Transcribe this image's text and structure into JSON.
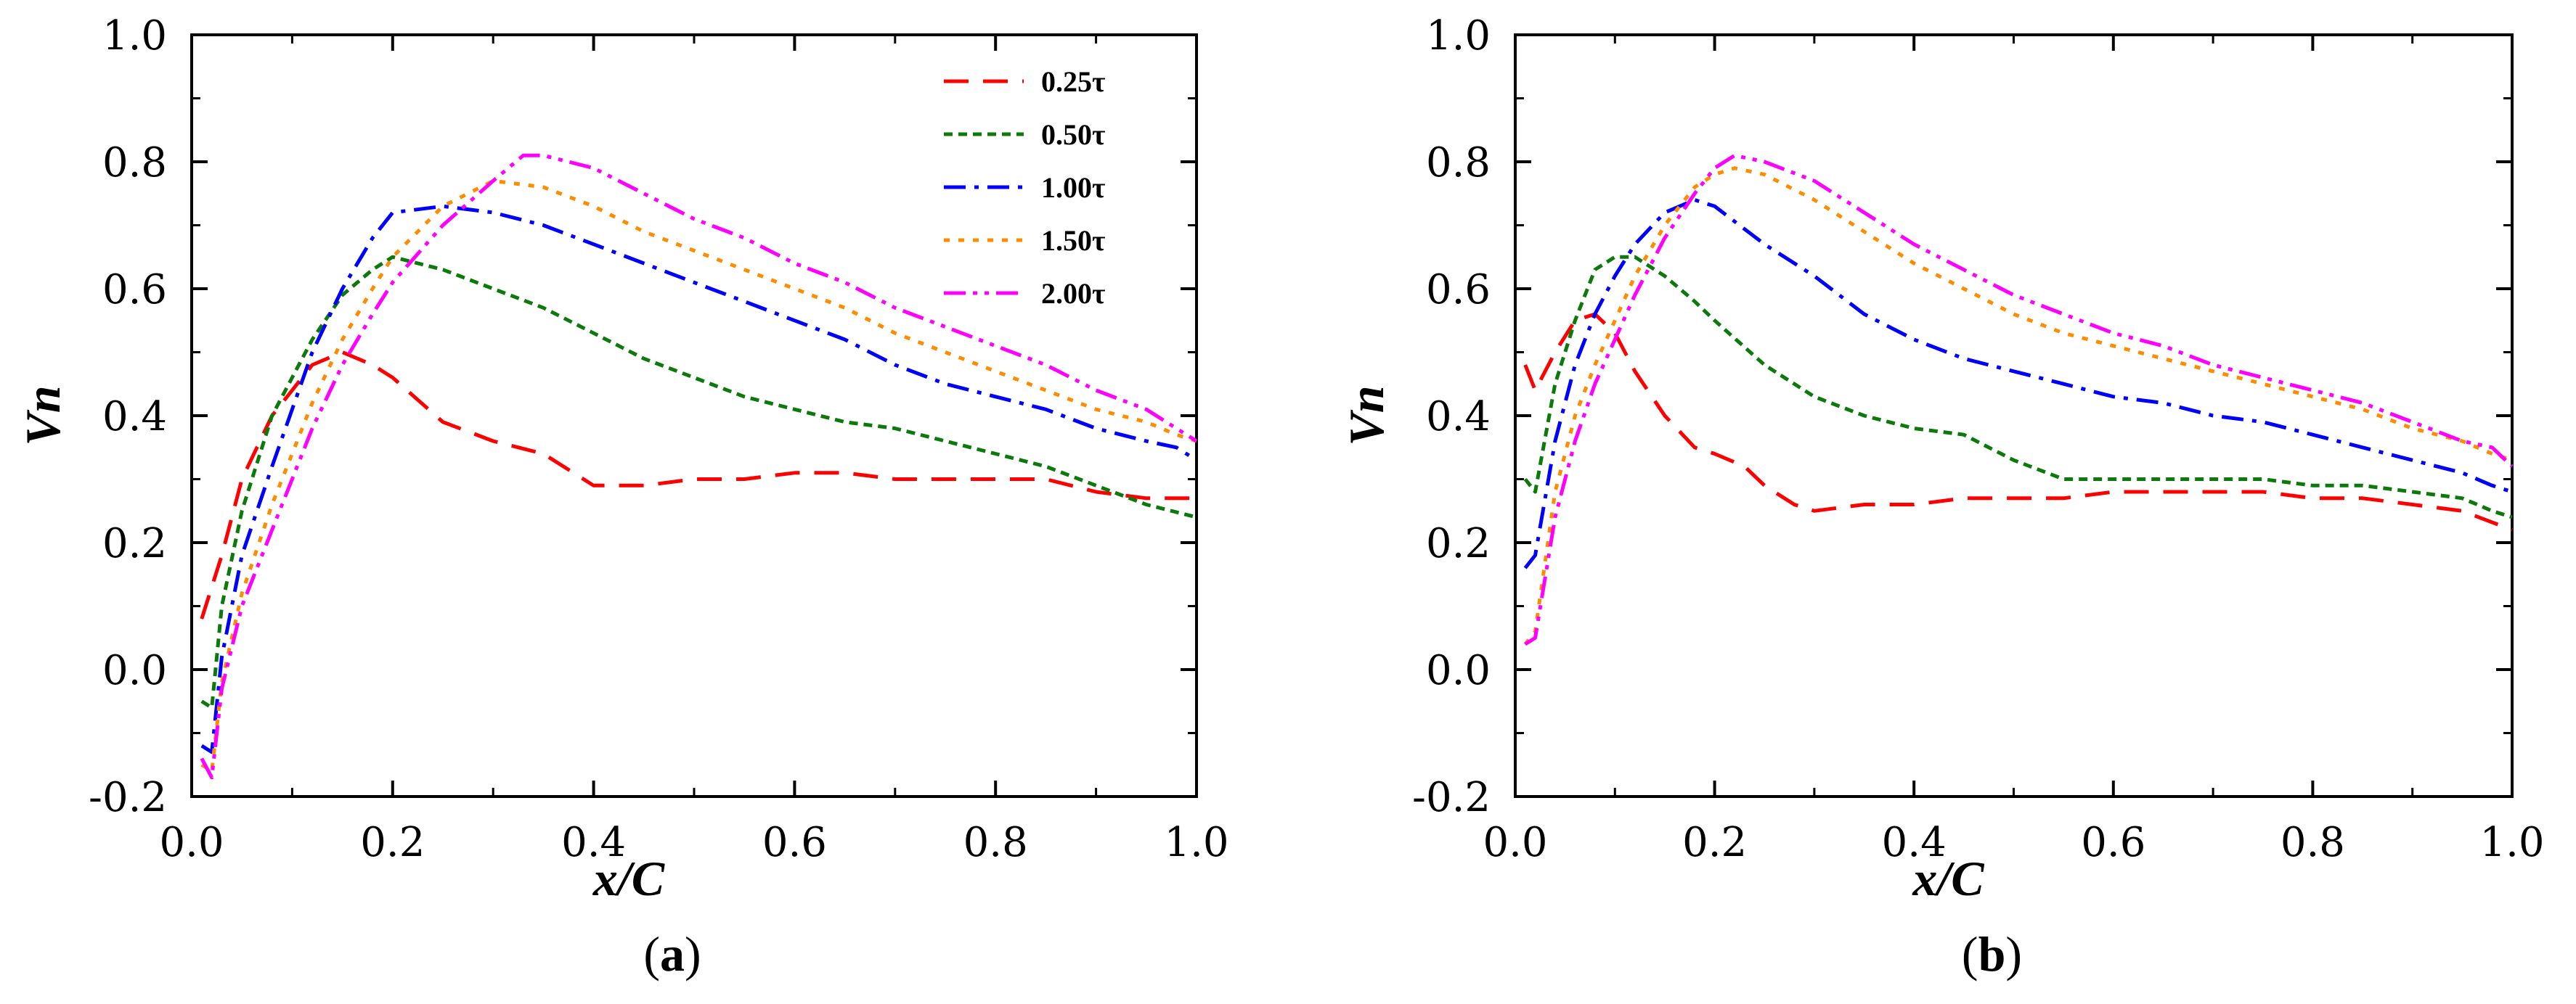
{
  "chart_data": [
    {
      "type": "line",
      "panel": "a",
      "caption": "a",
      "xlabel": "x/C",
      "ylabel": "Vn",
      "xlim": [
        0.0,
        1.0
      ],
      "ylim": [
        -0.2,
        1.0
      ],
      "xticks": [
        "0.0",
        "0.2",
        "0.4",
        "0.6",
        "0.8",
        "1.0"
      ],
      "yticks": [
        "-0.2",
        "0.0",
        "0.2",
        "0.4",
        "0.6",
        "0.8",
        "1.0"
      ],
      "legend_position": "top-right",
      "series": [
        {
          "name": "0.25τ",
          "color": "#ff0000",
          "dash": "dash",
          "x": [
            0.01,
            0.03,
            0.05,
            0.08,
            0.1,
            0.12,
            0.15,
            0.18,
            0.2,
            0.25,
            0.3,
            0.35,
            0.4,
            0.45,
            0.5,
            0.55,
            0.6,
            0.65,
            0.7,
            0.75,
            0.8,
            0.85,
            0.9,
            0.95,
            1.0
          ],
          "y": [
            0.08,
            0.18,
            0.3,
            0.4,
            0.44,
            0.48,
            0.5,
            0.48,
            0.46,
            0.39,
            0.36,
            0.34,
            0.29,
            0.29,
            0.3,
            0.3,
            0.31,
            0.31,
            0.3,
            0.3,
            0.3,
            0.3,
            0.28,
            0.27,
            0.27
          ]
        },
        {
          "name": "0.50τ",
          "color": "#0b7a0b",
          "dash": "short",
          "x": [
            0.01,
            0.02,
            0.03,
            0.05,
            0.08,
            0.1,
            0.12,
            0.15,
            0.18,
            0.2,
            0.25,
            0.3,
            0.35,
            0.4,
            0.45,
            0.5,
            0.55,
            0.6,
            0.65,
            0.7,
            0.75,
            0.8,
            0.85,
            0.9,
            0.95,
            1.0
          ],
          "y": [
            -0.05,
            -0.06,
            0.1,
            0.25,
            0.4,
            0.46,
            0.52,
            0.59,
            0.63,
            0.65,
            0.63,
            0.6,
            0.57,
            0.53,
            0.49,
            0.46,
            0.43,
            0.41,
            0.39,
            0.38,
            0.36,
            0.34,
            0.32,
            0.29,
            0.26,
            0.24
          ]
        },
        {
          "name": "1.00τ",
          "color": "#0000ff",
          "dash": "dashdot",
          "x": [
            0.01,
            0.02,
            0.03,
            0.05,
            0.08,
            0.1,
            0.12,
            0.15,
            0.18,
            0.2,
            0.25,
            0.3,
            0.35,
            0.4,
            0.45,
            0.5,
            0.55,
            0.6,
            0.65,
            0.7,
            0.75,
            0.8,
            0.85,
            0.9,
            0.95,
            0.98,
            1.0
          ],
          "y": [
            -0.12,
            -0.13,
            0.02,
            0.18,
            0.32,
            0.41,
            0.5,
            0.6,
            0.68,
            0.72,
            0.73,
            0.72,
            0.7,
            0.67,
            0.64,
            0.61,
            0.58,
            0.55,
            0.52,
            0.48,
            0.45,
            0.43,
            0.41,
            0.38,
            0.36,
            0.35,
            0.33
          ]
        },
        {
          "name": "1.50τ",
          "color": "#ff8c00",
          "dash": "dot",
          "x": [
            0.01,
            0.02,
            0.03,
            0.05,
            0.08,
            0.1,
            0.12,
            0.15,
            0.18,
            0.2,
            0.25,
            0.3,
            0.35,
            0.4,
            0.45,
            0.5,
            0.55,
            0.6,
            0.65,
            0.7,
            0.75,
            0.8,
            0.85,
            0.9,
            0.95,
            0.98,
            1.0
          ],
          "y": [
            -0.15,
            -0.16,
            -0.02,
            0.12,
            0.26,
            0.34,
            0.42,
            0.52,
            0.6,
            0.65,
            0.73,
            0.77,
            0.76,
            0.73,
            0.69,
            0.66,
            0.63,
            0.6,
            0.57,
            0.53,
            0.5,
            0.47,
            0.44,
            0.41,
            0.39,
            0.37,
            0.36
          ]
        },
        {
          "name": "2.00τ",
          "color": "#ff00ff",
          "dash": "dashdotdot",
          "x": [
            0.01,
            0.02,
            0.03,
            0.05,
            0.08,
            0.1,
            0.12,
            0.15,
            0.18,
            0.2,
            0.25,
            0.3,
            0.33,
            0.35,
            0.4,
            0.45,
            0.5,
            0.55,
            0.6,
            0.65,
            0.7,
            0.75,
            0.8,
            0.85,
            0.9,
            0.95,
            0.98,
            1.0
          ],
          "y": [
            -0.14,
            -0.17,
            -0.03,
            0.1,
            0.22,
            0.3,
            0.38,
            0.48,
            0.56,
            0.61,
            0.7,
            0.77,
            0.81,
            0.81,
            0.79,
            0.75,
            0.71,
            0.68,
            0.64,
            0.61,
            0.57,
            0.54,
            0.51,
            0.48,
            0.44,
            0.41,
            0.38,
            0.36
          ]
        }
      ]
    },
    {
      "type": "line",
      "panel": "b",
      "caption": "b",
      "xlabel": "x/C",
      "ylabel": "Vn",
      "xlim": [
        0.0,
        1.0
      ],
      "ylim": [
        -0.2,
        1.0
      ],
      "xticks": [
        "0.0",
        "0.2",
        "0.4",
        "0.6",
        "0.8",
        "1.0"
      ],
      "yticks": [
        "-0.2",
        "0.0",
        "0.2",
        "0.4",
        "0.6",
        "0.8",
        "1.0"
      ],
      "series": [
        {
          "name": "0.25τ",
          "color": "#ff0000",
          "dash": "dash",
          "x": [
            0.01,
            0.02,
            0.04,
            0.06,
            0.08,
            0.1,
            0.12,
            0.15,
            0.18,
            0.2,
            0.23,
            0.25,
            0.28,
            0.3,
            0.35,
            0.4,
            0.45,
            0.5,
            0.55,
            0.6,
            0.65,
            0.7,
            0.75,
            0.8,
            0.85,
            0.9,
            0.95,
            1.0
          ],
          "y": [
            0.48,
            0.44,
            0.5,
            0.55,
            0.56,
            0.53,
            0.47,
            0.4,
            0.35,
            0.34,
            0.32,
            0.29,
            0.26,
            0.25,
            0.26,
            0.26,
            0.27,
            0.27,
            0.27,
            0.28,
            0.28,
            0.28,
            0.28,
            0.27,
            0.27,
            0.26,
            0.25,
            0.22
          ]
        },
        {
          "name": "0.50τ",
          "color": "#0b7a0b",
          "dash": "short",
          "x": [
            0.01,
            0.02,
            0.04,
            0.06,
            0.08,
            0.1,
            0.12,
            0.15,
            0.18,
            0.2,
            0.25,
            0.3,
            0.35,
            0.4,
            0.45,
            0.5,
            0.55,
            0.6,
            0.65,
            0.7,
            0.75,
            0.8,
            0.85,
            0.9,
            0.95,
            0.98,
            1.0
          ],
          "y": [
            0.3,
            0.28,
            0.45,
            0.55,
            0.63,
            0.65,
            0.65,
            0.62,
            0.58,
            0.55,
            0.48,
            0.43,
            0.4,
            0.38,
            0.37,
            0.33,
            0.3,
            0.3,
            0.3,
            0.3,
            0.3,
            0.29,
            0.29,
            0.28,
            0.27,
            0.25,
            0.24
          ]
        },
        {
          "name": "1.00τ",
          "color": "#0000ff",
          "dash": "dashdot",
          "x": [
            0.01,
            0.02,
            0.04,
            0.06,
            0.08,
            0.1,
            0.12,
            0.15,
            0.18,
            0.2,
            0.25,
            0.3,
            0.35,
            0.4,
            0.45,
            0.5,
            0.55,
            0.6,
            0.65,
            0.7,
            0.75,
            0.8,
            0.85,
            0.9,
            0.95,
            0.98,
            1.0
          ],
          "y": [
            0.16,
            0.18,
            0.36,
            0.48,
            0.56,
            0.62,
            0.67,
            0.72,
            0.74,
            0.73,
            0.67,
            0.62,
            0.56,
            0.52,
            0.49,
            0.47,
            0.45,
            0.43,
            0.42,
            0.4,
            0.39,
            0.37,
            0.35,
            0.33,
            0.31,
            0.29,
            0.28
          ]
        },
        {
          "name": "1.50τ",
          "color": "#ff8c00",
          "dash": "dot",
          "x": [
            0.01,
            0.02,
            0.04,
            0.06,
            0.08,
            0.1,
            0.12,
            0.15,
            0.18,
            0.2,
            0.22,
            0.25,
            0.3,
            0.35,
            0.4,
            0.45,
            0.5,
            0.55,
            0.6,
            0.65,
            0.7,
            0.75,
            0.8,
            0.85,
            0.9,
            0.95,
            0.98,
            1.0
          ],
          "y": [
            0.04,
            0.06,
            0.28,
            0.4,
            0.48,
            0.55,
            0.62,
            0.7,
            0.76,
            0.78,
            0.79,
            0.78,
            0.74,
            0.69,
            0.64,
            0.6,
            0.56,
            0.53,
            0.51,
            0.49,
            0.47,
            0.45,
            0.43,
            0.41,
            0.38,
            0.36,
            0.34,
            0.33
          ]
        },
        {
          "name": "2.00τ",
          "color": "#ff00ff",
          "dash": "dashdotdot",
          "x": [
            0.01,
            0.02,
            0.04,
            0.06,
            0.08,
            0.1,
            0.12,
            0.15,
            0.18,
            0.2,
            0.22,
            0.25,
            0.3,
            0.35,
            0.4,
            0.45,
            0.5,
            0.55,
            0.6,
            0.65,
            0.7,
            0.75,
            0.8,
            0.85,
            0.9,
            0.95,
            0.98,
            1.0
          ],
          "y": [
            0.04,
            0.05,
            0.24,
            0.36,
            0.45,
            0.52,
            0.59,
            0.68,
            0.75,
            0.79,
            0.81,
            0.8,
            0.77,
            0.72,
            0.67,
            0.63,
            0.59,
            0.56,
            0.53,
            0.51,
            0.48,
            0.46,
            0.44,
            0.42,
            0.39,
            0.36,
            0.35,
            0.32
          ]
        }
      ]
    }
  ]
}
